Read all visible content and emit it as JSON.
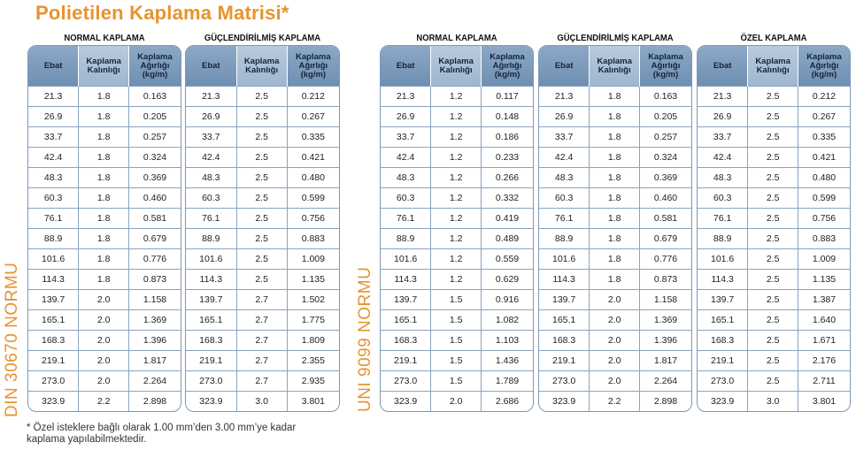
{
  "title": "Polietilen Kaplama Matrisi*",
  "left_label": "DIN 30670 NORMU",
  "right_label": "UNI 9099 NORMU",
  "footnote_line1": "* Özel isteklere bağlı olarak 1.00 mm’den 3.00 mm’ye kadar",
  "footnote_line2": "kaplama yapılabilmektedir.",
  "headers": {
    "ebat": "Ebat",
    "kalinlik": "Kaplama Kalınlığı",
    "agirlik": "Kaplama Ağırlığı (kg/m)"
  },
  "tables": [
    {
      "title": "NORMAL KAPLAMA",
      "rows": [
        [
          "21.3",
          "1.8",
          "0.163"
        ],
        [
          "26.9",
          "1.8",
          "0.205"
        ],
        [
          "33.7",
          "1.8",
          "0.257"
        ],
        [
          "42.4",
          "1.8",
          "0.324"
        ],
        [
          "48.3",
          "1.8",
          "0.369"
        ],
        [
          "60.3",
          "1.8",
          "0.460"
        ],
        [
          "76.1",
          "1.8",
          "0.581"
        ],
        [
          "88.9",
          "1.8",
          "0.679"
        ],
        [
          "101.6",
          "1.8",
          "0.776"
        ],
        [
          "114.3",
          "1.8",
          "0.873"
        ],
        [
          "139.7",
          "2.0",
          "1.158"
        ],
        [
          "165.1",
          "2.0",
          "1.369"
        ],
        [
          "168.3",
          "2.0",
          "1.396"
        ],
        [
          "219.1",
          "2.0",
          "1.817"
        ],
        [
          "273.0",
          "2.0",
          "2.264"
        ],
        [
          "323.9",
          "2.2",
          "2.898"
        ]
      ]
    },
    {
      "title": "GÜÇLENDİRİLMİŞ KAPLAMA",
      "rows": [
        [
          "21.3",
          "2.5",
          "0.212"
        ],
        [
          "26.9",
          "2.5",
          "0.267"
        ],
        [
          "33.7",
          "2.5",
          "0.335"
        ],
        [
          "42.4",
          "2.5",
          "0.421"
        ],
        [
          "48.3",
          "2.5",
          "0.480"
        ],
        [
          "60.3",
          "2.5",
          "0.599"
        ],
        [
          "76.1",
          "2.5",
          "0.756"
        ],
        [
          "88.9",
          "2.5",
          "0.883"
        ],
        [
          "101.6",
          "2.5",
          "1.009"
        ],
        [
          "114.3",
          "2.5",
          "1.135"
        ],
        [
          "139.7",
          "2.7",
          "1.502"
        ],
        [
          "165.1",
          "2.7",
          "1.775"
        ],
        [
          "168.3",
          "2.7",
          "1.809"
        ],
        [
          "219.1",
          "2.7",
          "2.355"
        ],
        [
          "273.0",
          "2.7",
          "2.935"
        ],
        [
          "323.9",
          "3.0",
          "3.801"
        ]
      ]
    },
    {
      "title": "NORMAL KAPLAMA",
      "rows": [
        [
          "21.3",
          "1.2",
          "0.117"
        ],
        [
          "26.9",
          "1.2",
          "0.148"
        ],
        [
          "33.7",
          "1.2",
          "0.186"
        ],
        [
          "42.4",
          "1.2",
          "0.233"
        ],
        [
          "48.3",
          "1.2",
          "0.266"
        ],
        [
          "60.3",
          "1.2",
          "0.332"
        ],
        [
          "76.1",
          "1.2",
          "0.419"
        ],
        [
          "88.9",
          "1.2",
          "0.489"
        ],
        [
          "101.6",
          "1.2",
          "0.559"
        ],
        [
          "114.3",
          "1.2",
          "0.629"
        ],
        [
          "139.7",
          "1.5",
          "0.916"
        ],
        [
          "165.1",
          "1.5",
          "1.082"
        ],
        [
          "168.3",
          "1.5",
          "1.103"
        ],
        [
          "219.1",
          "1.5",
          "1.436"
        ],
        [
          "273.0",
          "1.5",
          "1.789"
        ],
        [
          "323.9",
          "2.0",
          "2.686"
        ]
      ]
    },
    {
      "title": "GÜÇLENDİRİLMİŞ KAPLAMA",
      "rows": [
        [
          "21.3",
          "1.8",
          "0.163"
        ],
        [
          "26.9",
          "1.8",
          "0.205"
        ],
        [
          "33.7",
          "1.8",
          "0.257"
        ],
        [
          "42.4",
          "1.8",
          "0.324"
        ],
        [
          "48.3",
          "1.8",
          "0.369"
        ],
        [
          "60.3",
          "1.8",
          "0.460"
        ],
        [
          "76.1",
          "1.8",
          "0.581"
        ],
        [
          "88.9",
          "1.8",
          "0.679"
        ],
        [
          "101.6",
          "1.8",
          "0.776"
        ],
        [
          "114.3",
          "1.8",
          "0.873"
        ],
        [
          "139.7",
          "2.0",
          "1.158"
        ],
        [
          "165.1",
          "2.0",
          "1.369"
        ],
        [
          "168.3",
          "2.0",
          "1.396"
        ],
        [
          "219.1",
          "2.0",
          "1.817"
        ],
        [
          "273.0",
          "2.0",
          "2.264"
        ],
        [
          "323.9",
          "2.2",
          "2.898"
        ]
      ]
    },
    {
      "title": "ÖZEL KAPLAMA",
      "rows": [
        [
          "21.3",
          "2.5",
          "0.212"
        ],
        [
          "26.9",
          "2.5",
          "0.267"
        ],
        [
          "33.7",
          "2.5",
          "0.335"
        ],
        [
          "42.4",
          "2.5",
          "0.421"
        ],
        [
          "48.3",
          "2.5",
          "0.480"
        ],
        [
          "60.3",
          "2.5",
          "0.599"
        ],
        [
          "76.1",
          "2.5",
          "0.756"
        ],
        [
          "88.9",
          "2.5",
          "0.883"
        ],
        [
          "101.6",
          "2.5",
          "1.009"
        ],
        [
          "114.3",
          "2.5",
          "1.135"
        ],
        [
          "139.7",
          "2.5",
          "1.387"
        ],
        [
          "165.1",
          "2.5",
          "1.640"
        ],
        [
          "168.3",
          "2.5",
          "1.671"
        ],
        [
          "219.1",
          "2.5",
          "2.176"
        ],
        [
          "273.0",
          "2.5",
          "2.711"
        ],
        [
          "323.9",
          "3.0",
          "3.801"
        ]
      ]
    }
  ]
}
